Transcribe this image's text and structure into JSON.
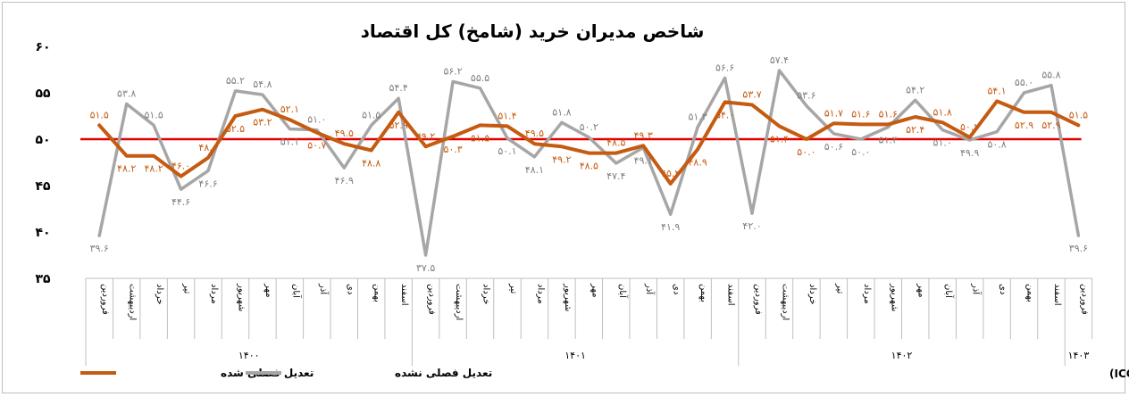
{
  "chart_data": {
    "type": "line",
    "title": "شاخص مدیران خرید (شامخ) کل اقتصاد",
    "ylim": [
      35,
      60
    ],
    "yticks": [
      "۳۵",
      "۴۰",
      "۴۵",
      "۵۰",
      "۵۵",
      "۶۰"
    ],
    "reference_line": 50,
    "reference_color": "#e00000",
    "categories": [
      "فروردین",
      "اردیبهشت",
      "خرداد",
      "تیر",
      "مرداد",
      "شهریور",
      "مهر",
      "آبان",
      "آذر",
      "دی",
      "بهمن",
      "اسفند",
      "فروردین",
      "اردیبهشت",
      "خرداد",
      "تیر",
      "مرداد",
      "شهریور",
      "مهر",
      "آبان",
      "آذر",
      "دی",
      "بهمن",
      "اسفند",
      "فروردین",
      "اردیبهشت",
      "خرداد",
      "تیر",
      "مرداد",
      "شهریور",
      "مهر",
      "آبان",
      "آذر",
      "دی",
      "بهمن",
      "اسفند",
      "فروردین"
    ],
    "years": [
      {
        "label": "۱۴۰۰",
        "start": 0,
        "end": 11
      },
      {
        "label": "۱۴۰۱",
        "start": 12,
        "end": 23
      },
      {
        "label": "۱۴۰۲",
        "start": 24,
        "end": 35
      },
      {
        "label": "۱۴۰۳",
        "start": 36,
        "end": 36
      }
    ],
    "series": [
      {
        "name": "تعدیل فصلی شده",
        "color": "#c55a11",
        "values": [
          51.5,
          48.2,
          48.2,
          46.0,
          48.0,
          52.5,
          53.2,
          52.1,
          50.7,
          49.5,
          48.8,
          52.9,
          49.2,
          50.3,
          51.5,
          51.4,
          49.5,
          49.2,
          48.5,
          48.5,
          49.3,
          45.2,
          48.9,
          54.0,
          53.7,
          51.4,
          50.0,
          51.7,
          51.6,
          51.6,
          52.4,
          51.8,
          50.2,
          54.1,
          52.9,
          52.9,
          51.5
        ],
        "labels": [
          "۵۱.۵",
          "۴۸.۲",
          "۴۸.۲",
          "۴۶.۰",
          "۴۸.۰",
          "۵۲.۵",
          "۵۳.۲",
          "۵۲.۱",
          "۵۰.۷",
          "۴۹.۵",
          "۴۸.۸",
          "۵۲.۹",
          "۴۹.۲",
          "۵۰.۳",
          "۵۱.۵",
          "۵۱.۴",
          "۴۹.۵",
          "۴۹.۲",
          "۴۸.۵",
          "۴۸.۵",
          "۴۹.۳",
          "۴۵.۲",
          "۴۸.۹",
          "۵۴.۰",
          "۵۳.۷",
          "۵۱.۴",
          "۵۰.۰",
          "۵۱.۷",
          "۵۱.۶",
          "۵۱.۶",
          "۵۲.۴",
          "۵۱.۸",
          "۵۰.۲",
          "۵۴.۱",
          "۵۲.۹",
          "۵۲.۹",
          "۵۱.۵"
        ]
      },
      {
        "name": "تعدیل فصلی نشده",
        "color": "#a6a6a6",
        "values": [
          39.6,
          53.8,
          51.5,
          44.6,
          46.6,
          55.2,
          54.8,
          51.1,
          51.0,
          46.9,
          51.5,
          54.4,
          37.5,
          56.2,
          55.5,
          50.1,
          48.1,
          51.8,
          50.2,
          47.4,
          49.1,
          41.9,
          51.3,
          56.6,
          42.0,
          57.4,
          53.6,
          50.6,
          50.0,
          51.3,
          54.2,
          51.0,
          49.9,
          50.8,
          55.0,
          55.8,
          39.6
        ],
        "labels": [
          "۳۹.۶",
          "۵۳.۸",
          "۵۱.۵",
          "۴۴.۶",
          "۴۶.۶",
          "۵۵.۲",
          "۵۴.۸",
          "۵۱.۱",
          "۵۱.۰",
          "۴۶.۹",
          "۵۱.۵",
          "۵۴.۴",
          "۳۷.۵",
          "۵۶.۲",
          "۵۵.۵",
          "۵۰.۱",
          "۴۸.۱",
          "۵۱.۸",
          "۵۰.۲",
          "۴۷.۴",
          "۴۹.۱",
          "۴۱.۹",
          "۵۱.۳",
          "۵۶.۶",
          "۴۲.۰",
          "۵۷.۴",
          "۵۳.۶",
          "۵۰.۶",
          "۵۰.۰",
          "۵۱.۳",
          "۵۴.۲",
          "۵۱.۰",
          "۴۹.۹",
          "۵۰.۸",
          "۵۵.۰",
          "۵۵.۸",
          "۳۹.۶"
        ]
      }
    ],
    "legend_position": "bottom-left",
    "source": "منبع: اتاق بازرگانی، صنایع، معادن و کشاورزی ایران (ICCIMA)"
  }
}
